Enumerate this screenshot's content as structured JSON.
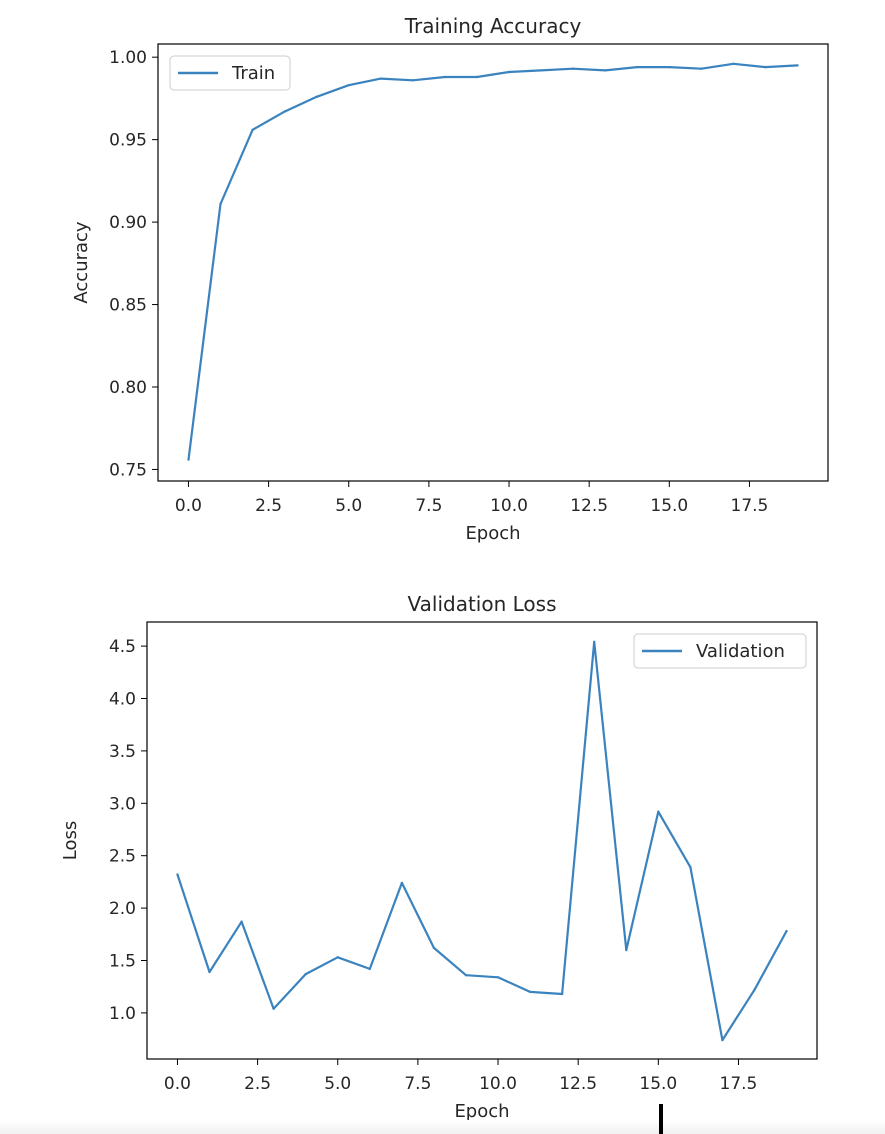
{
  "colors": {
    "line": "#3a83bf",
    "axis": "#000000",
    "text": "#262626",
    "legend_border": "#cccccc"
  },
  "chart_data": [
    {
      "type": "line",
      "title": "Training Accuracy",
      "xlabel": "Epoch",
      "ylabel": "Accuracy",
      "xlim": [
        -0.95,
        19.95
      ],
      "ylim": [
        0.743,
        1.008
      ],
      "xticks": [
        0,
        2.5,
        5,
        7.5,
        10,
        12.5,
        15,
        17.5
      ],
      "xtick_labels": [
        "0.0",
        "2.5",
        "5.0",
        "7.5",
        "10.0",
        "12.5",
        "15.0",
        "17.5"
      ],
      "yticks": [
        0.75,
        0.8,
        0.85,
        0.9,
        0.95,
        1.0
      ],
      "ytick_labels": [
        "0.75",
        "0.80",
        "0.85",
        "0.90",
        "0.95",
        "1.00"
      ],
      "legend_position": "upper left",
      "grid": false,
      "series": [
        {
          "name": "Train",
          "x": [
            0,
            1,
            2,
            3,
            4,
            5,
            6,
            7,
            8,
            9,
            10,
            11,
            12,
            13,
            14,
            15,
            16,
            17,
            18,
            19
          ],
          "y": [
            0.756,
            0.911,
            0.956,
            0.967,
            0.976,
            0.983,
            0.987,
            0.986,
            0.988,
            0.988,
            0.991,
            0.992,
            0.993,
            0.992,
            0.994,
            0.994,
            0.993,
            0.996,
            0.994,
            0.995
          ]
        }
      ]
    },
    {
      "type": "line",
      "title": "Validation Loss",
      "xlabel": "Epoch",
      "ylabel": "Loss",
      "xlim": [
        -0.95,
        19.95
      ],
      "ylim": [
        0.56,
        4.73
      ],
      "xticks": [
        0,
        2.5,
        5,
        7.5,
        10,
        12.5,
        15,
        17.5
      ],
      "xtick_labels": [
        "0.0",
        "2.5",
        "5.0",
        "7.5",
        "10.0",
        "12.5",
        "15.0",
        "17.5"
      ],
      "yticks": [
        1.0,
        1.5,
        2.0,
        2.5,
        3.0,
        3.5,
        4.0,
        4.5
      ],
      "ytick_labels": [
        "1.0",
        "1.5",
        "2.0",
        "2.5",
        "3.0",
        "3.5",
        "4.0",
        "4.5"
      ],
      "legend_position": "upper right",
      "grid": false,
      "series": [
        {
          "name": "Validation",
          "x": [
            0,
            1,
            2,
            3,
            4,
            5,
            6,
            7,
            8,
            9,
            10,
            11,
            12,
            13,
            14,
            15,
            16,
            17,
            18,
            19
          ],
          "y": [
            2.32,
            1.39,
            1.87,
            1.04,
            1.37,
            1.53,
            1.42,
            2.24,
            1.62,
            1.36,
            1.34,
            1.2,
            1.18,
            4.54,
            1.6,
            2.92,
            2.39,
            0.74,
            1.22,
            1.78
          ]
        }
      ]
    }
  ]
}
